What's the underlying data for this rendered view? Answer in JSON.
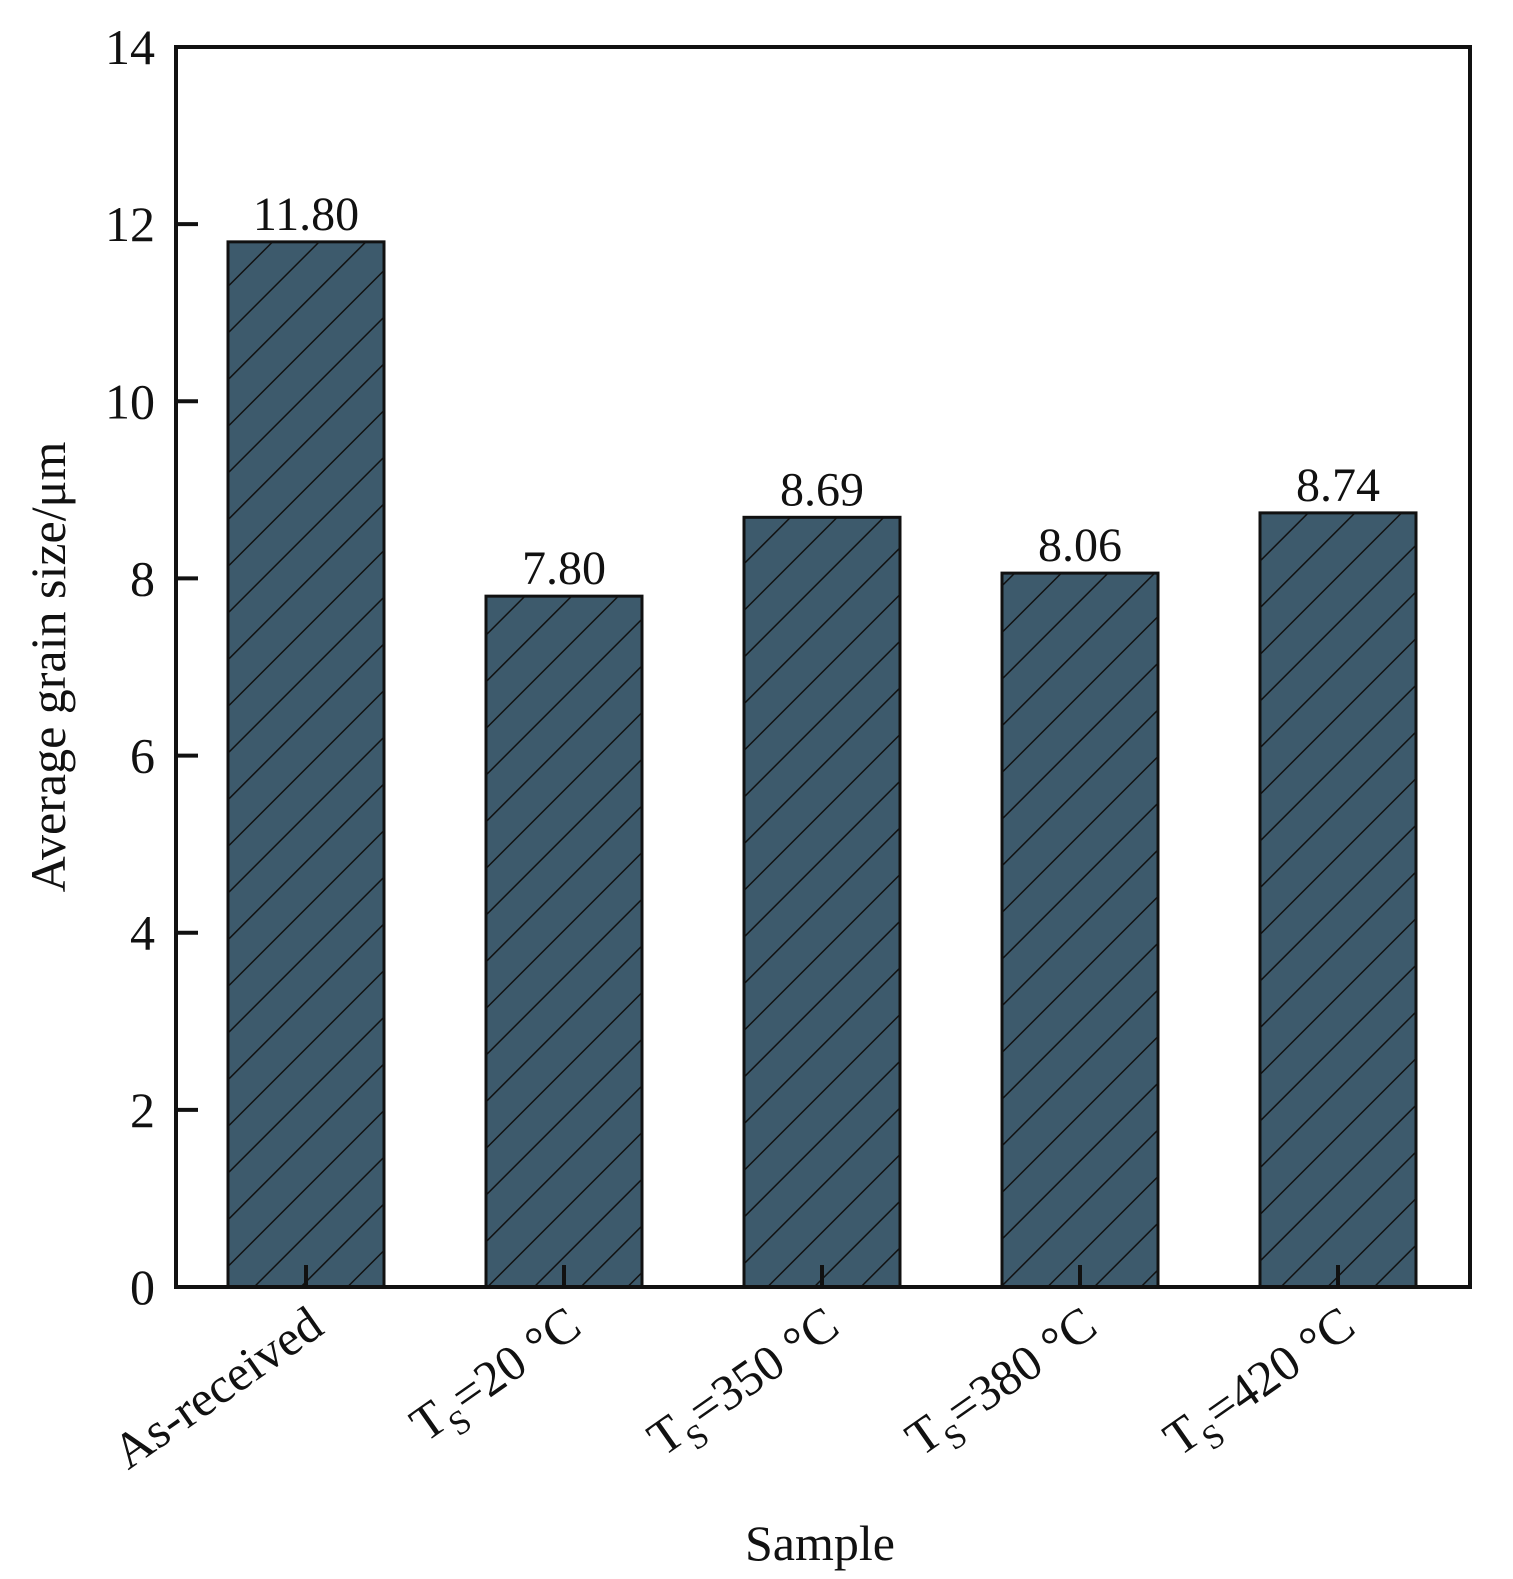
{
  "chart_data": {
    "type": "bar",
    "title": "",
    "xlabel": "Sample",
    "ylabel": "Average grain size/μm",
    "ylim": [
      0,
      14
    ],
    "yticks": [
      0,
      2,
      4,
      6,
      8,
      10,
      12,
      14
    ],
    "grid": false,
    "categories": [
      {
        "main": "As-received",
        "sub": "",
        "rest": ""
      },
      {
        "main": "T",
        "sub": "S",
        "rest": "=20 °C"
      },
      {
        "main": "T",
        "sub": "S",
        "rest": "=350 °C"
      },
      {
        "main": "T",
        "sub": "S",
        "rest": "=380 °C"
      },
      {
        "main": "T",
        "sub": "S",
        "rest": "=420 °C"
      }
    ],
    "values": [
      11.8,
      7.8,
      8.69,
      8.06,
      8.74
    ],
    "data_labels": [
      "11.80",
      "7.80",
      "8.69",
      "8.06",
      "8.74"
    ],
    "bar_color": "#3d5a6c",
    "bar_pattern": "diagonal-hatch"
  }
}
